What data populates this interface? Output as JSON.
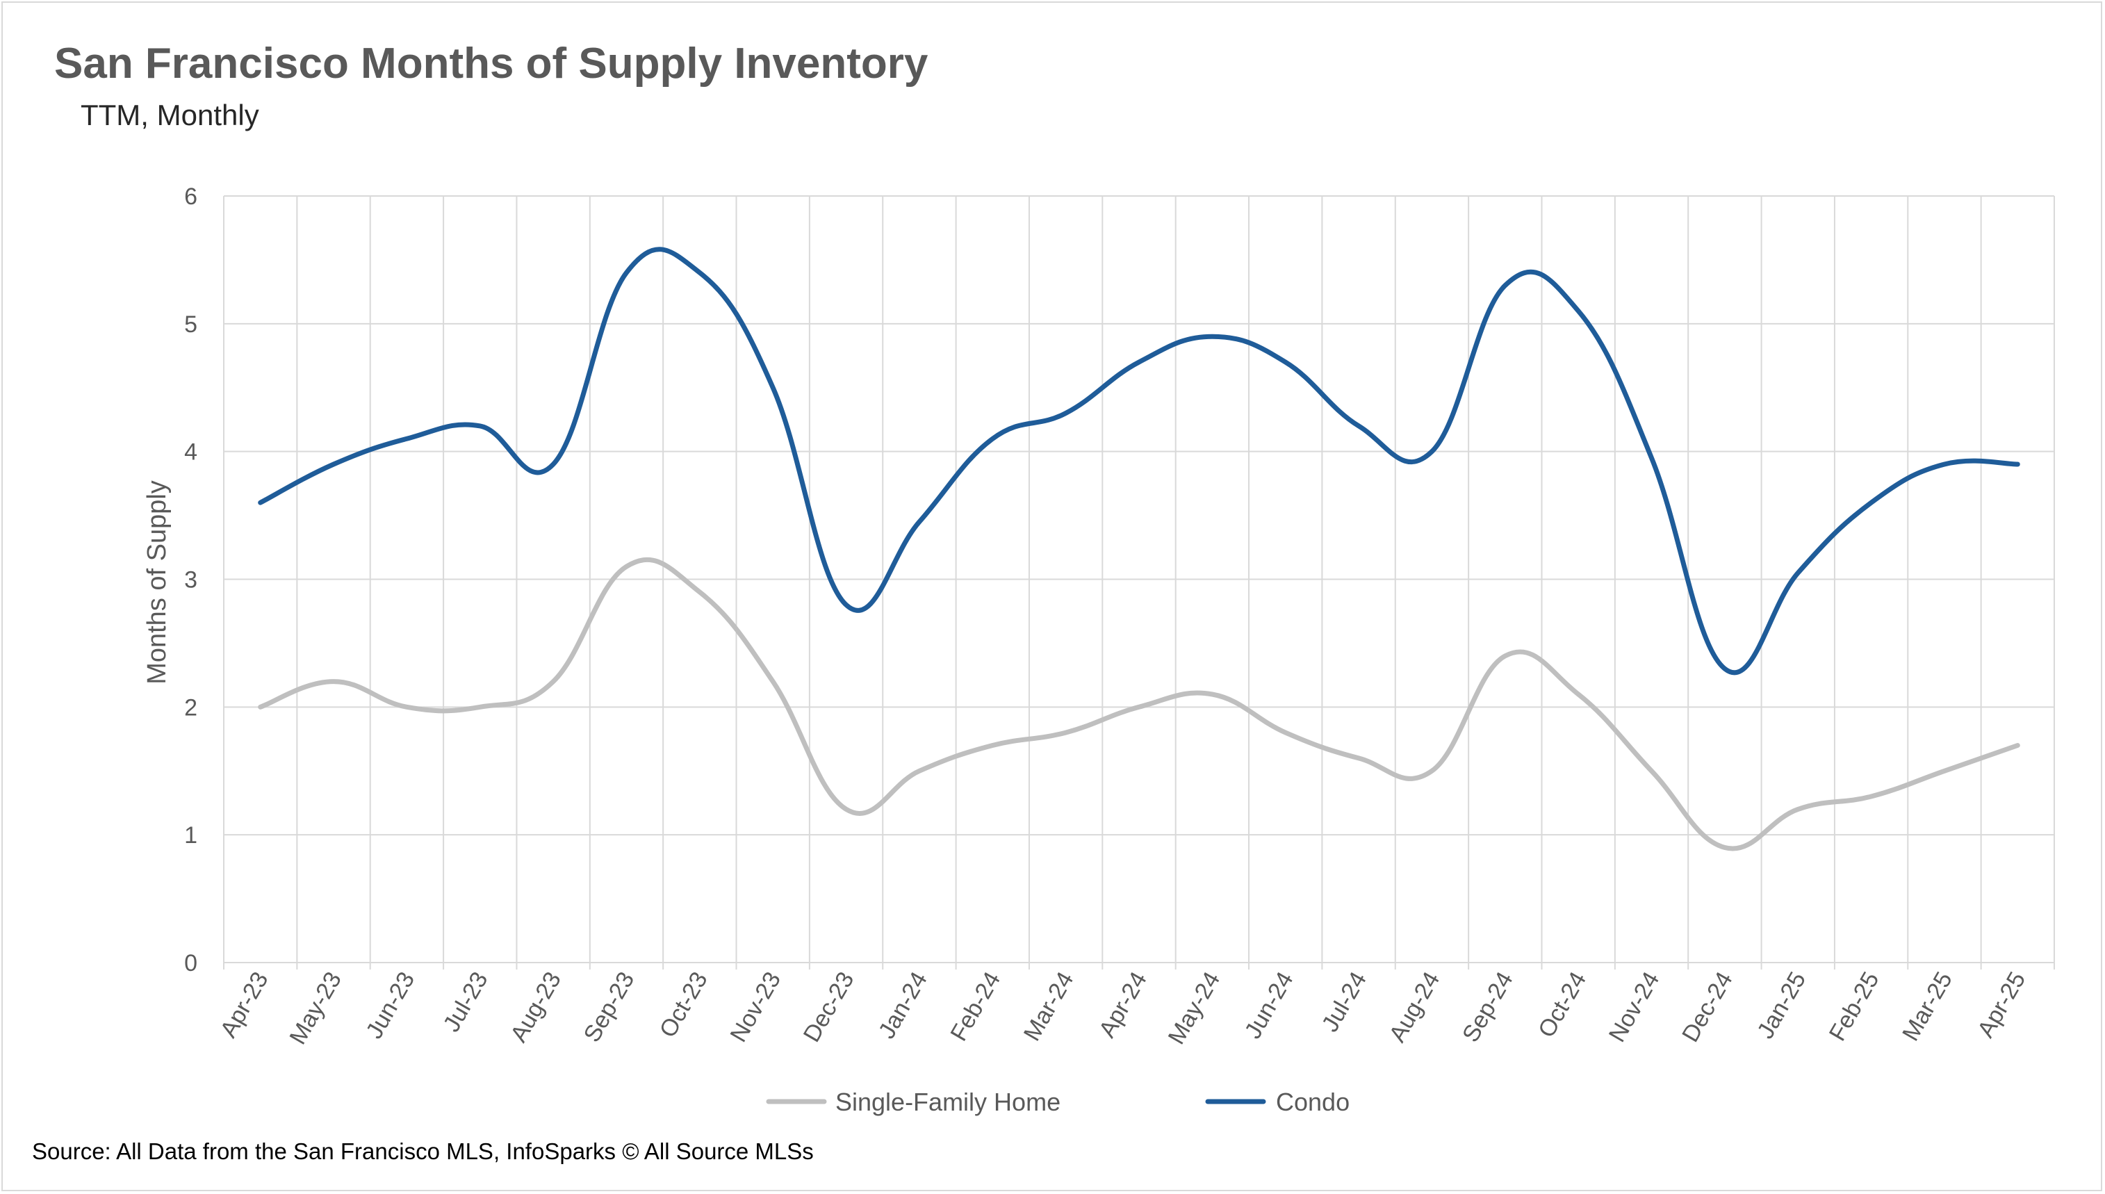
{
  "chart_data": {
    "type": "line",
    "title": "San Francisco Months of Supply Inventory",
    "subtitle": "TTM, Monthly",
    "xlabel": "",
    "ylabel": "Months of Supply",
    "ylim": [
      0,
      6
    ],
    "yticks": [
      0,
      1,
      2,
      3,
      4,
      5,
      6
    ],
    "grid": true,
    "legend_position": "bottom",
    "categories": [
      "Apr-23",
      "May-23",
      "Jun-23",
      "Jul-23",
      "Aug-23",
      "Sep-23",
      "Oct-23",
      "Nov-23",
      "Dec-23",
      "Jan-24",
      "Feb-24",
      "Mar-24",
      "Apr-24",
      "May-24",
      "Jun-24",
      "Jul-24",
      "Aug-24",
      "Sep-24",
      "Oct-24",
      "Nov-24",
      "Dec-24",
      "Jan-25",
      "Feb-25",
      "Mar-25",
      "Apr-25"
    ],
    "series": [
      {
        "name": "Single-Family Home",
        "color": "#bfbfbf",
        "values": [
          2.0,
          2.2,
          2.0,
          2.0,
          2.2,
          3.1,
          2.9,
          2.2,
          1.2,
          1.5,
          1.7,
          1.8,
          2.0,
          2.1,
          1.8,
          1.6,
          1.5,
          2.4,
          2.1,
          1.5,
          0.9,
          1.2,
          1.3,
          1.5,
          1.7
        ]
      },
      {
        "name": "Condo",
        "color": "#1f5c99",
        "values": [
          3.6,
          3.9,
          4.1,
          4.2,
          3.9,
          5.4,
          5.4,
          4.5,
          2.8,
          3.45,
          4.1,
          4.3,
          4.7,
          4.9,
          4.7,
          4.2,
          4.0,
          5.3,
          5.1,
          3.95,
          2.3,
          3.05,
          3.6,
          3.9,
          3.9
        ]
      }
    ],
    "source": "Source: All Data from the San Francisco MLS, InfoSparks © All Source MLSs"
  }
}
